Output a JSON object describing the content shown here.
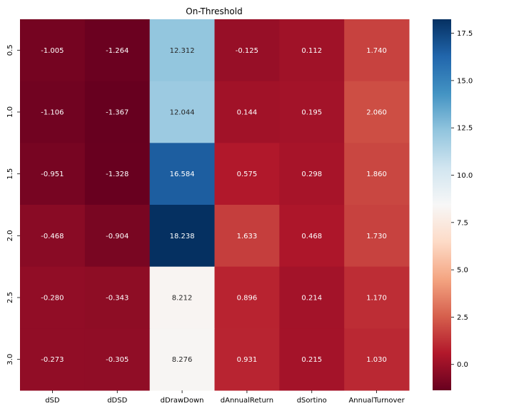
{
  "chart_data": {
    "type": "heatmap",
    "title": "On-Threshold",
    "xlabel": "",
    "ylabel": "",
    "columns": [
      "dSD",
      "dDSD",
      "dDrawDown",
      "dAnnualReturn",
      "dSortino",
      "AnnualTurnover"
    ],
    "rows": [
      "0.5",
      "1.0",
      "1.5",
      "2.0",
      "2.5",
      "3.0"
    ],
    "values": [
      [
        -1.005,
        -1.264,
        12.312,
        -0.125,
        0.112,
        1.74
      ],
      [
        -1.106,
        -1.367,
        12.044,
        0.144,
        0.195,
        2.06
      ],
      [
        -0.951,
        -1.328,
        16.584,
        0.575,
        0.298,
        1.86
      ],
      [
        -0.468,
        -0.904,
        18.238,
        1.633,
        0.468,
        1.73
      ],
      [
        -0.28,
        -0.343,
        8.212,
        0.896,
        0.214,
        1.17
      ],
      [
        -0.273,
        -0.305,
        8.276,
        0.931,
        0.215,
        1.03
      ]
    ],
    "labels": [
      [
        "-1.005",
        "-1.264",
        "12.312",
        "-0.125",
        "0.112",
        "1.740"
      ],
      [
        "-1.106",
        "-1.367",
        "12.044",
        "0.144",
        "0.195",
        "2.060"
      ],
      [
        "-0.951",
        "-1.328",
        "16.584",
        "0.575",
        "0.298",
        "1.860"
      ],
      [
        "-0.468",
        "-0.904",
        "18.238",
        "1.633",
        "0.468",
        "1.730"
      ],
      [
        "-0.280",
        "-0.343",
        "8.212",
        "0.896",
        "0.214",
        "1.170"
      ],
      [
        "-0.273",
        "-0.305",
        "8.276",
        "0.931",
        "0.215",
        "1.030"
      ]
    ],
    "colormap": "RdBu",
    "vmin": -1.367,
    "vmax": 18.238,
    "colorbar_ticks": [
      0.0,
      2.5,
      5.0,
      7.5,
      10.0,
      12.5,
      15.0,
      17.5
    ],
    "colorbar_tick_labels": [
      "0.0",
      "2.5",
      "5.0",
      "7.5",
      "10.0",
      "12.5",
      "15.0",
      "17.5"
    ],
    "colorbar_position": "right"
  }
}
